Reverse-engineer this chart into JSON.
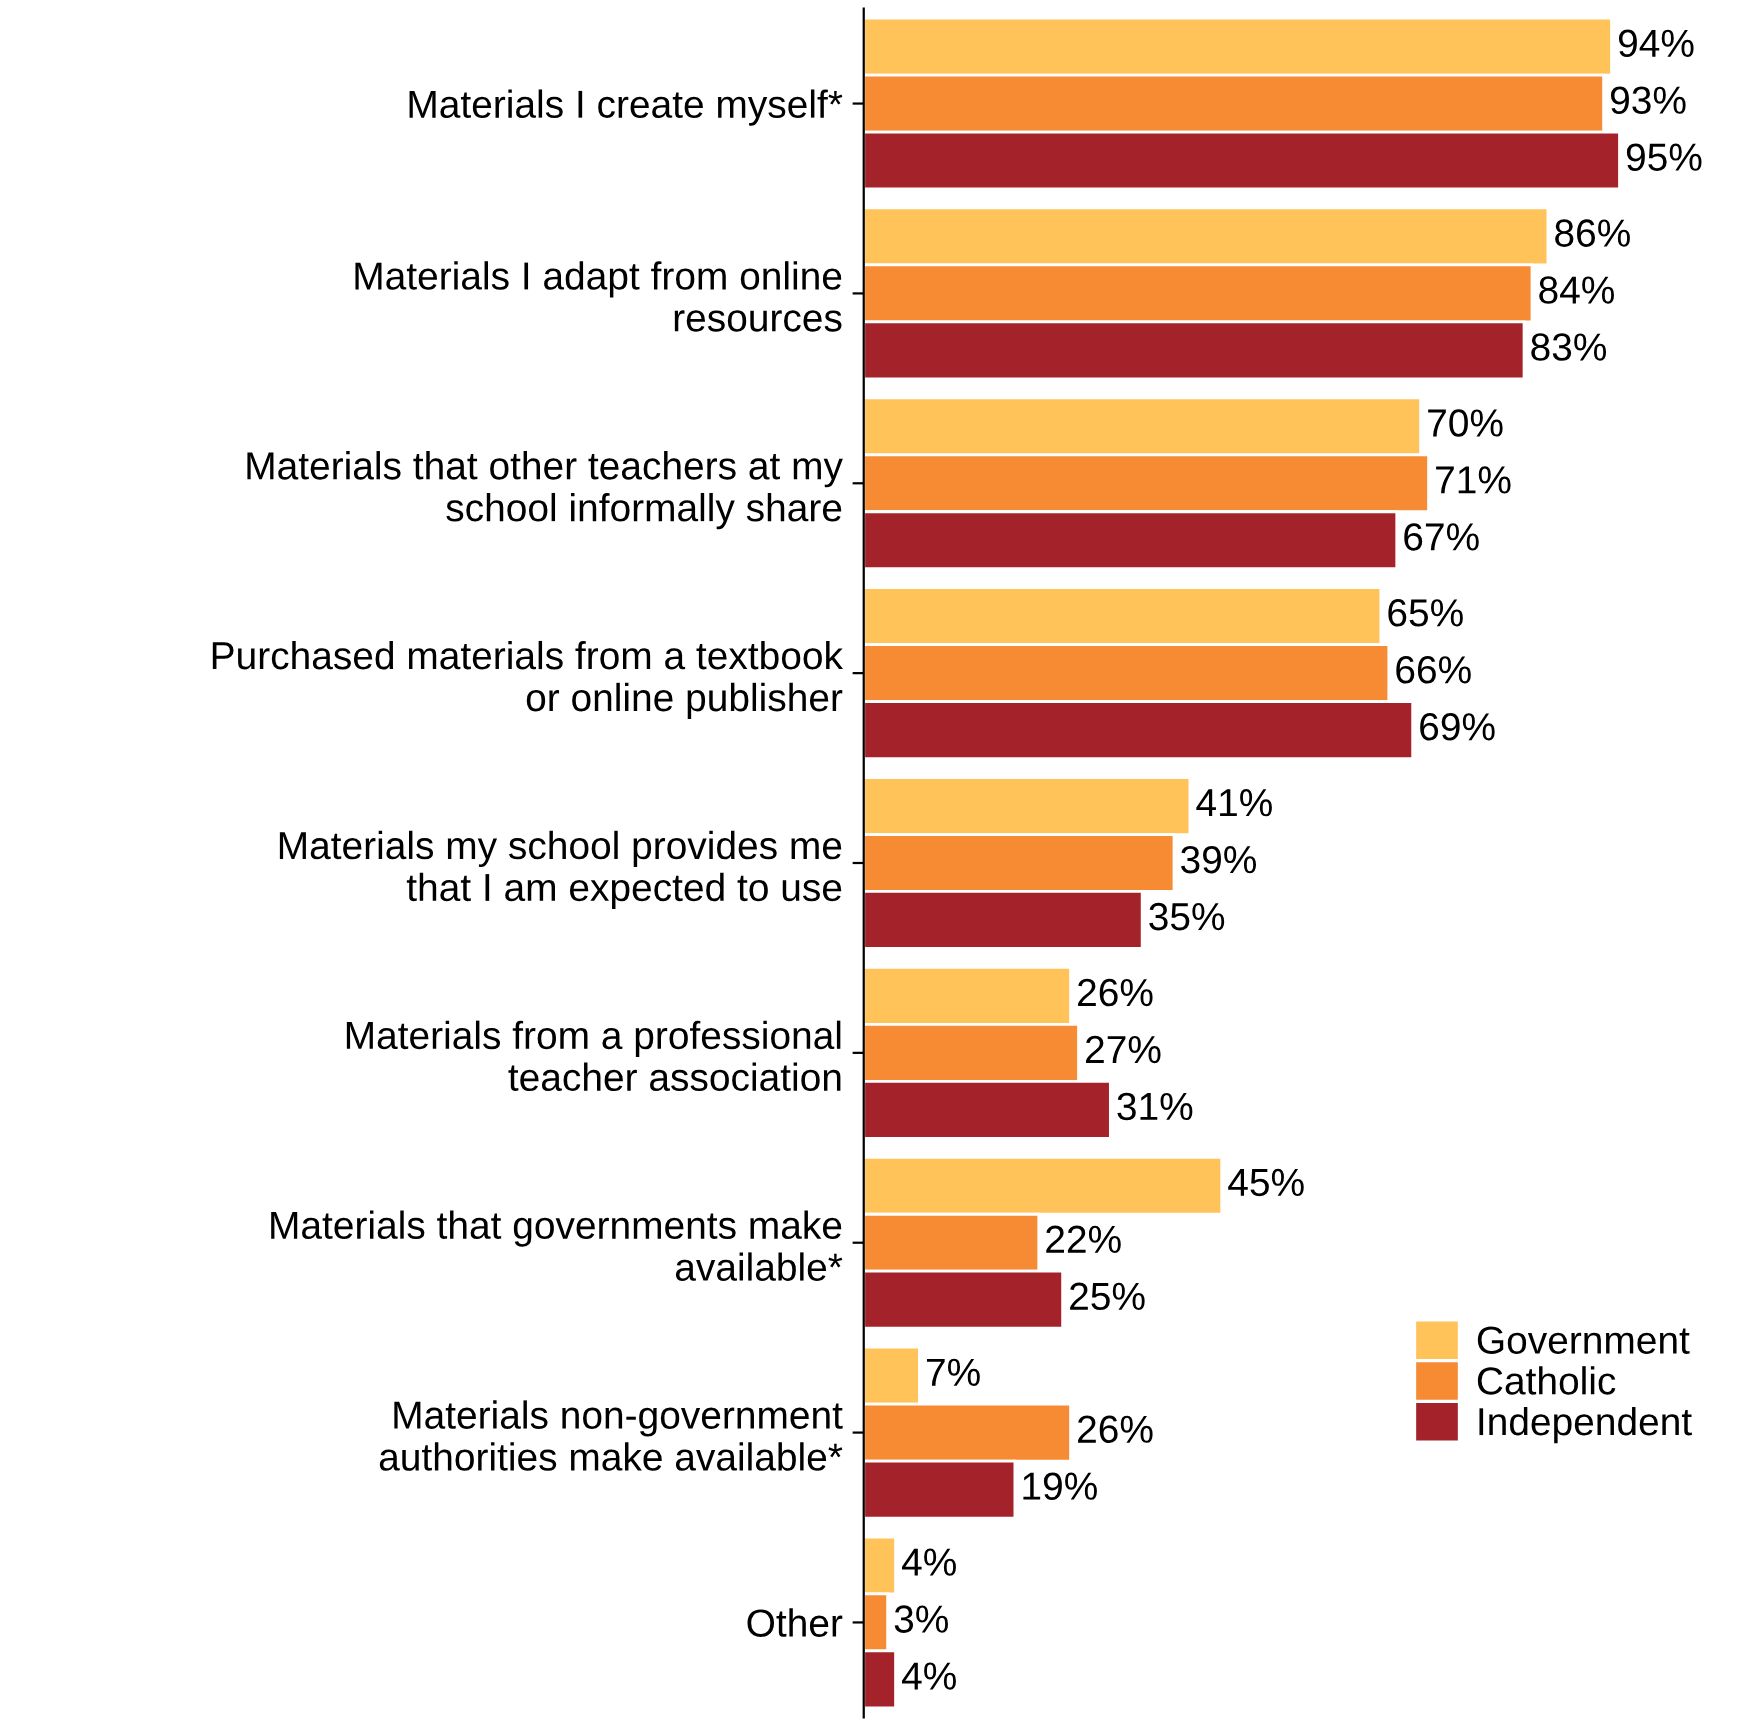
{
  "chart_data": {
    "type": "bar",
    "orientation": "horizontal",
    "categories": [
      "Materials I create myself*",
      "Materials I adapt from online\nresources",
      "Materials that other teachers at my\nschool informally share",
      "Purchased materials from a textbook\nor online publisher",
      "Materials my school provides me\nthat I am expected to use",
      "Materials from a professional\nteacher association",
      "Materials that governments make\navailable*",
      "Materials non-government\nauthorities make available*",
      "Other"
    ],
    "series": [
      {
        "name": "Government",
        "color": "#ffc35a",
        "values": [
          94,
          86,
          70,
          65,
          41,
          26,
          45,
          7,
          4
        ],
        "value_labels": [
          "94%",
          "86%",
          "70%",
          "65%",
          "41%",
          "26%",
          "45%",
          "7%",
          "4%"
        ]
      },
      {
        "name": "Catholic",
        "color": "#f68b33",
        "values": [
          93,
          84,
          71,
          66,
          39,
          27,
          22,
          26,
          3
        ],
        "value_labels": [
          "93%",
          "84%",
          "71%",
          "66%",
          "39%",
          "27%",
          "22%",
          "26%",
          "3%"
        ]
      },
      {
        "name": "Independent",
        "color": "#a4232a",
        "values": [
          95,
          83,
          67,
          69,
          35,
          31,
          25,
          19,
          4
        ],
        "value_labels": [
          "95%",
          "83%",
          "67%",
          "69%",
          "35%",
          "31%",
          "25%",
          "19%",
          "4%"
        ]
      }
    ],
    "legend": "bottom right",
    "grid": false,
    "tick_labels": "y"
  }
}
